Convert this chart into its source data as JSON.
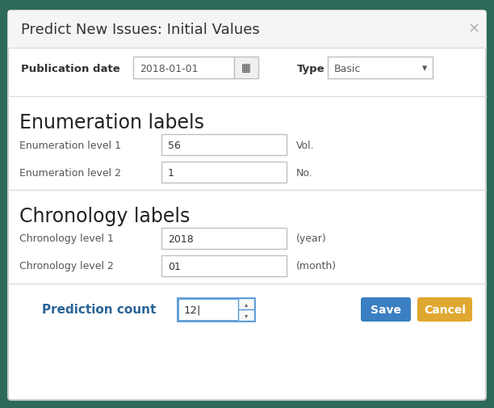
{
  "title": "Predict New Issues: Initial Values",
  "close_btn": "×",
  "bg_outer": "#2d6a5a",
  "bg_dialog": "#ffffff",
  "border_color": "#cccccc",
  "separator_color": "#dddddd",
  "title_color": "#333333",
  "label_color": "#555555",
  "section_color": "#222222",
  "pub_date_label": "Publication date",
  "pub_date_value": "2018-01-01",
  "type_label": "Type",
  "type_value": "Basic",
  "enum_section": "Enumeration labels",
  "enum_fields": [
    {
      "label": "Enumeration level 1",
      "value": "56",
      "suffix": "Vol."
    },
    {
      "label": "Enumeration level 2",
      "value": "1",
      "suffix": "No."
    }
  ],
  "chron_section": "Chronology labels",
  "chron_fields": [
    {
      "label": "Chronology level 1",
      "value": "2018",
      "suffix": "(year)"
    },
    {
      "label": "Chronology level 2",
      "value": "01",
      "suffix": "(month)"
    }
  ],
  "pred_count_label": "Prediction count",
  "pred_count_value": "12|",
  "save_btn_text": "Save",
  "cancel_btn_text": "Cancel",
  "save_btn_color": "#3a7fc1",
  "cancel_btn_color": "#e0a830",
  "input_border": "#c0c0c0",
  "input_focus_border": "#5b9bd5",
  "input_bg": "#ffffff",
  "close_color": "#aaaaaa",
  "enum_label_color": "#555555",
  "top_bg": "#f5f5f5"
}
